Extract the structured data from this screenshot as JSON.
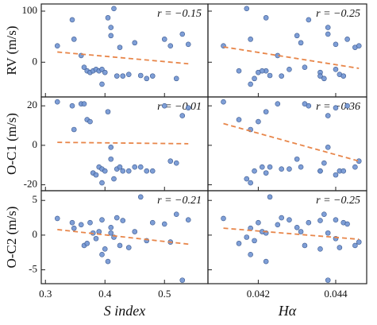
{
  "chart_data": [
    {
      "type": "scatter",
      "annotation": "r = −0.15",
      "ylabel": "RV (m/s)",
      "color": "#7094d1",
      "x": [
        0.32,
        0.345,
        0.348,
        0.36,
        0.365,
        0.37,
        0.375,
        0.38,
        0.385,
        0.39,
        0.395,
        0.4,
        0.405,
        0.41,
        0.41,
        0.415,
        0.42,
        0.425,
        0.43,
        0.44,
        0.45,
        0.46,
        0.47,
        0.48,
        0.5,
        0.51,
        0.52,
        0.53,
        0.54,
        0.395
      ],
      "values": [
        32,
        83,
        45,
        13,
        -10,
        -17,
        -20,
        -17,
        -14,
        -17,
        -14,
        -20,
        87,
        68,
        52,
        105,
        -27,
        29,
        -27,
        -24,
        38,
        -26,
        -32,
        -27,
        45,
        32,
        -32,
        55,
        35,
        -43
      ],
      "trend": {
        "x": [
          0.32,
          0.54
        ],
        "values": [
          20,
          -3
        ],
        "color": "#e8864a"
      },
      "xlim": [
        0.293,
        0.573
      ],
      "ylim": [
        -68,
        114
      ],
      "yticks": [
        0,
        100
      ]
    },
    {
      "type": "scatter",
      "annotation": "r = −0.25",
      "color": "#7094d1",
      "x": [
        0.0411,
        0.0433,
        0.0418,
        0.0425,
        0.0432,
        0.0415,
        0.042,
        0.0422,
        0.044,
        0.0421,
        0.0428,
        0.0436,
        0.0422,
        0.0438,
        0.043,
        0.0417,
        0.0426,
        0.0445,
        0.0436,
        0.0441,
        0.0431,
        0.0423,
        0.0419,
        0.0442,
        0.0443,
        0.0446,
        0.0437,
        0.0438,
        0.044,
        0.0418
      ],
      "values": [
        32,
        83,
        45,
        13,
        -10,
        -17,
        -20,
        -17,
        -14,
        -17,
        -14,
        -20,
        87,
        68,
        52,
        105,
        -27,
        29,
        -27,
        -24,
        38,
        -26,
        -32,
        -27,
        45,
        32,
        -32,
        55,
        35,
        -43
      ],
      "trend": {
        "x": [
          0.0411,
          0.0446
        ],
        "values": [
          30,
          -12
        ],
        "color": "#e8864a"
      },
      "xlim": [
        0.0407,
        0.0448
      ],
      "ylim": [
        -68,
        114
      ]
    },
    {
      "type": "scatter",
      "annotation": "r = −0.01",
      "ylabel": "O-C1 (m/s)",
      "color": "#7094d1",
      "x": [
        0.32,
        0.345,
        0.348,
        0.36,
        0.365,
        0.37,
        0.375,
        0.38,
        0.385,
        0.39,
        0.395,
        0.4,
        0.405,
        0.41,
        0.41,
        0.415,
        0.42,
        0.425,
        0.43,
        0.44,
        0.45,
        0.46,
        0.47,
        0.48,
        0.5,
        0.51,
        0.52,
        0.53,
        0.54,
        0.395
      ],
      "values": [
        22,
        20,
        8,
        21,
        21,
        13,
        12,
        -14,
        -15,
        -11,
        -12,
        -13,
        17,
        -1,
        -7,
        -17,
        -12,
        -11,
        -13,
        -13,
        -11,
        -11,
        -13,
        -13,
        20,
        -8,
        -9,
        15,
        19,
        -19
      ],
      "trend": {
        "x": [
          0.32,
          0.54
        ],
        "values": [
          1.5,
          0.8
        ],
        "color": "#e8864a"
      },
      "xlim": [
        0.293,
        0.573
      ],
      "ylim": [
        -23,
        24.5
      ],
      "yticks": [
        -20,
        0,
        20
      ]
    },
    {
      "type": "scatter",
      "annotation": "r = −0.36",
      "color": "#7094d1",
      "x": [
        0.0411,
        0.0433,
        0.0418,
        0.0425,
        0.0432,
        0.0415,
        0.042,
        0.0422,
        0.044,
        0.0421,
        0.0428,
        0.0436,
        0.0422,
        0.0438,
        0.043,
        0.0417,
        0.0426,
        0.0445,
        0.0436,
        0.0441,
        0.0431,
        0.0423,
        0.0419,
        0.0442,
        0.0443,
        0.0446,
        0.0437,
        0.0438,
        0.044,
        0.0418
      ],
      "values": [
        22,
        20,
        8,
        21,
        21,
        13,
        12,
        -14,
        -15,
        -11,
        -12,
        -13,
        17,
        -1,
        -7,
        -17,
        -12,
        -11,
        -13,
        -13,
        -11,
        -11,
        -13,
        -13,
        20,
        -8,
        -9,
        15,
        19,
        -19
      ],
      "trend": {
        "x": [
          0.0411,
          0.0446
        ],
        "values": [
          11,
          -8
        ],
        "color": "#e8864a"
      },
      "xlim": [
        0.0407,
        0.0448
      ],
      "ylim": [
        -23,
        24.5
      ]
    },
    {
      "type": "scatter",
      "annotation": "r = −0.21",
      "ylabel": "O-C2 (m/s)",
      "xlabel": "S index",
      "color": "#7094d1",
      "x": [
        0.32,
        0.345,
        0.348,
        0.36,
        0.365,
        0.37,
        0.375,
        0.38,
        0.385,
        0.39,
        0.395,
        0.4,
        0.405,
        0.41,
        0.41,
        0.415,
        0.42,
        0.425,
        0.43,
        0.44,
        0.45,
        0.46,
        0.47,
        0.48,
        0.5,
        0.51,
        0.52,
        0.53,
        0.54,
        0.395
      ],
      "values": [
        2.4,
        1.8,
        1.0,
        1.5,
        -1.5,
        -1.2,
        1.8,
        0.3,
        -0.5,
        0.5,
        2.2,
        -2,
        -3.8,
        0.3,
        1.1,
        -0.3,
        2.5,
        -1.5,
        2.1,
        -1.8,
        0.5,
        5.5,
        -0.8,
        1.8,
        1.6,
        -1,
        3,
        -6.5,
        2.2,
        -2.8
      ],
      "trend": {
        "x": [
          0.32,
          0.54
        ],
        "values": [
          0.8,
          -1.3
        ],
        "color": "#e8864a"
      },
      "xlim": [
        0.293,
        0.573
      ],
      "ylim": [
        -7,
        6.4
      ],
      "xticks": [
        0.3,
        0.4,
        0.5
      ],
      "yticks": [
        -5,
        0,
        5
      ]
    },
    {
      "type": "scatter",
      "annotation": "r = −0.25",
      "xlabel": "Hα",
      "color": "#7094d1",
      "x": [
        0.0411,
        0.0433,
        0.0418,
        0.0425,
        0.0432,
        0.0415,
        0.042,
        0.0422,
        0.044,
        0.0421,
        0.0428,
        0.0436,
        0.0422,
        0.0438,
        0.043,
        0.0417,
        0.0426,
        0.0445,
        0.0436,
        0.0441,
        0.0431,
        0.0423,
        0.0419,
        0.0442,
        0.0443,
        0.0446,
        0.0437,
        0.0438,
        0.044,
        0.0418
      ],
      "values": [
        2.4,
        1.8,
        1.0,
        1.5,
        -1.5,
        -1.2,
        1.8,
        0.3,
        -0.5,
        0.5,
        2.2,
        -2,
        -3.8,
        0.3,
        1.1,
        -0.3,
        2.5,
        -1.5,
        2.1,
        -1.8,
        0.5,
        5.5,
        -0.8,
        1.8,
        1.6,
        -1,
        3,
        -6.5,
        2.2,
        -2.8
      ],
      "trend": {
        "x": [
          0.0411,
          0.0446
        ],
        "values": [
          1.0,
          -0.6
        ],
        "color": "#e8864a"
      },
      "xlim": [
        0.0407,
        0.0448
      ],
      "ylim": [
        -7,
        6.4
      ],
      "xticks": [
        0.042,
        0.044
      ]
    }
  ]
}
